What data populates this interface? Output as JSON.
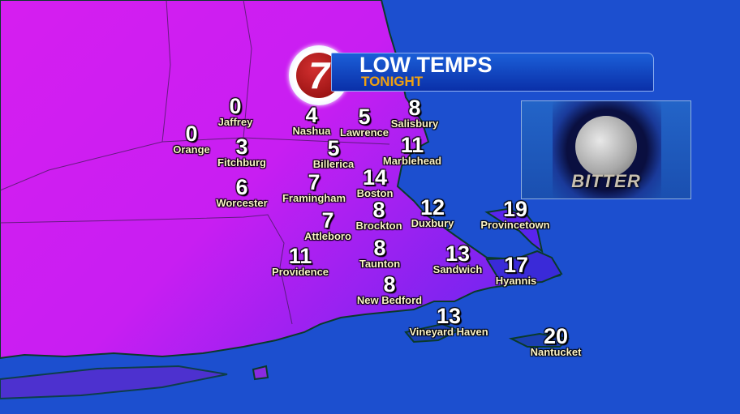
{
  "header": {
    "title": "LOW TEMPS",
    "subtitle": "TONIGHT",
    "logo_text": "7"
  },
  "inset": {
    "label": "BITTER",
    "icon": "full-moon-icon"
  },
  "colors": {
    "ocean": "#1c4fcf",
    "land_cold": "#d21ef0",
    "land_coast": "#8a22f0",
    "title": "#ffffff",
    "subtitle": "#f0a010",
    "city_name": "#fbf3c8"
  },
  "cities": [
    {
      "name": "Jaffrey",
      "temp": "0"
    },
    {
      "name": "Orange",
      "temp": "0"
    },
    {
      "name": "Nashua",
      "temp": "4"
    },
    {
      "name": "Lawrence",
      "temp": "5"
    },
    {
      "name": "Salisbury",
      "temp": "8"
    },
    {
      "name": "Fitchburg",
      "temp": "3"
    },
    {
      "name": "Billerica",
      "temp": "5"
    },
    {
      "name": "Marblehead",
      "temp": "11"
    },
    {
      "name": "Worcester",
      "temp": "6"
    },
    {
      "name": "Framingham",
      "temp": "7"
    },
    {
      "name": "Boston",
      "temp": "14"
    },
    {
      "name": "Brockton",
      "temp": "8"
    },
    {
      "name": "Duxbury",
      "temp": "12"
    },
    {
      "name": "Provincetown",
      "temp": "19"
    },
    {
      "name": "Attleboro",
      "temp": "7"
    },
    {
      "name": "Providence",
      "temp": "11"
    },
    {
      "name": "Taunton",
      "temp": "8"
    },
    {
      "name": "Sandwich",
      "temp": "13"
    },
    {
      "name": "Hyannis",
      "temp": "17"
    },
    {
      "name": "New Bedford",
      "temp": "8"
    },
    {
      "name": "Vineyard Haven",
      "temp": "13"
    },
    {
      "name": "Nantucket",
      "temp": "20"
    }
  ]
}
